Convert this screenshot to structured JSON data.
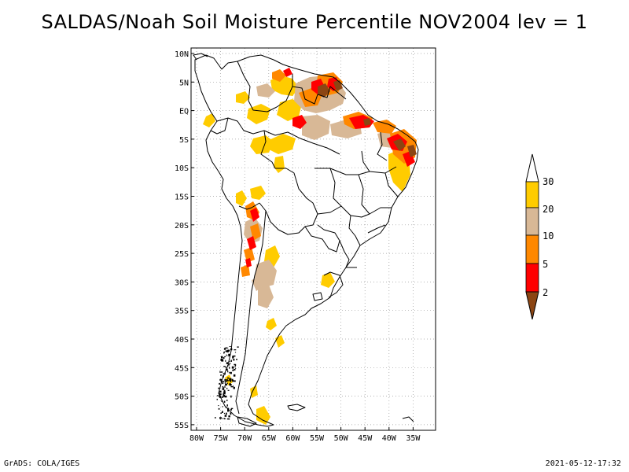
{
  "title": "SALDAS/Noah Soil Moisture Percentile NOV2004 lev = 1",
  "map": {
    "lat_labels": [
      "10N",
      "5N",
      "EQ",
      "5S",
      "10S",
      "15S",
      "20S",
      "25S",
      "30S",
      "35S",
      "40S",
      "45S",
      "50S",
      "55S"
    ],
    "lon_labels": [
      "80W",
      "75W",
      "70W",
      "65W",
      "60W",
      "55W",
      "50W",
      "45W",
      "40W",
      "35W"
    ]
  },
  "colorbar": {
    "labels": [
      "30",
      "20",
      "10",
      "5",
      "2"
    ],
    "colors": {
      "above30": "#ffffff",
      "p20_30": "#ffcc00",
      "p10_20": "#d8b896",
      "p5_10": "#ff8800",
      "p2_5": "#ff0000",
      "below2": "#8b4513"
    }
  },
  "footer": {
    "left": "GrADS: COLA/IGES",
    "right": "2021-05-12-17:32"
  }
}
